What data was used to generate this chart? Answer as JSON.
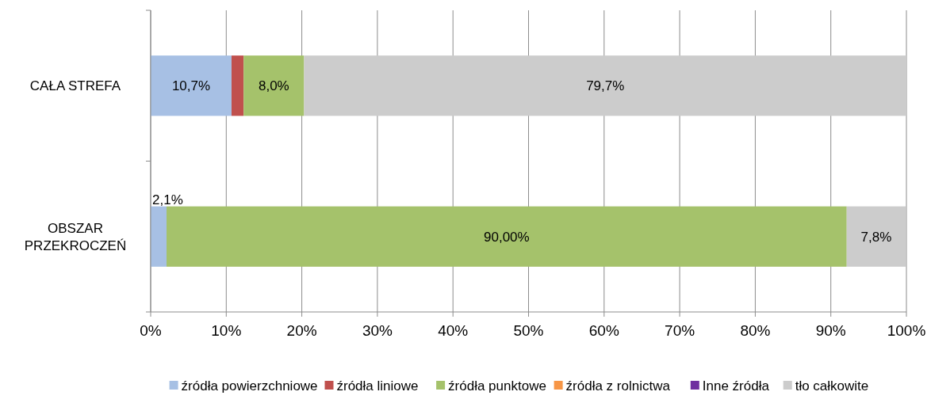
{
  "chart_data": {
    "type": "bar",
    "orientation": "horizontal",
    "stacked": true,
    "categories": [
      "CAŁA STREFA",
      "OBSZAR PRZEKROCZEŃ"
    ],
    "series": [
      {
        "name": "źródła powierzchniowe",
        "color": "#a7c0e4",
        "values": [
          10.7,
          2.1
        ],
        "value_labels": [
          "10,7%",
          "2,1%"
        ]
      },
      {
        "name": "źródła liniowe",
        "color": "#c0504d",
        "values": [
          1.6,
          0
        ],
        "value_labels": [
          null,
          null
        ]
      },
      {
        "name": "źródła punktowe",
        "color": "#a5c26b",
        "values": [
          8.0,
          90.0
        ],
        "value_labels": [
          "8,0%",
          "90,00%"
        ]
      },
      {
        "name": "źródła z rolnictwa",
        "color": "#f79646",
        "values": [
          0,
          0
        ],
        "value_labels": [
          null,
          null
        ]
      },
      {
        "name": "Inne źródła",
        "color": "#7030a0",
        "values": [
          0,
          0
        ],
        "value_labels": [
          null,
          null
        ]
      },
      {
        "name": "tło całkowite",
        "color": "#cccccc",
        "values": [
          79.7,
          7.8
        ],
        "value_labels": [
          "79,7%",
          "7,8%"
        ]
      }
    ],
    "xlim": [
      0,
      100
    ],
    "xticks": [
      {
        "value": 0,
        "label": "0%"
      },
      {
        "value": 10,
        "label": "10%"
      },
      {
        "value": 20,
        "label": "20%"
      },
      {
        "value": 30,
        "label": "30%"
      },
      {
        "value": 40,
        "label": "40%"
      },
      {
        "value": 50,
        "label": "50%"
      },
      {
        "value": 60,
        "label": "60%"
      },
      {
        "value": 70,
        "label": "70%"
      },
      {
        "value": 80,
        "label": "80%"
      },
      {
        "value": 90,
        "label": "90%"
      },
      {
        "value": 100,
        "label": "100%"
      }
    ],
    "grid": "x",
    "legend": "bottom"
  }
}
